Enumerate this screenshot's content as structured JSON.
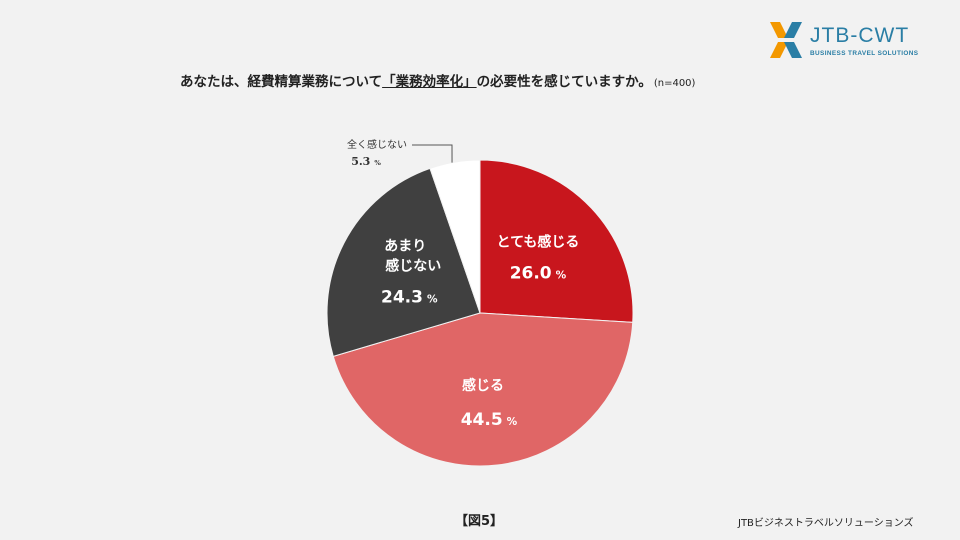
{
  "title": {
    "pre": "あなたは、経費精算業務について",
    "highlight": "「業務効率化」",
    "post": "の必要性を感じていますか。",
    "n": "(n=400)"
  },
  "logo": {
    "name": "JTB-CWT",
    "tagline": "BUSINESS TRAVEL SOLUTIONS"
  },
  "figure_label": "【図5】",
  "source": "JTBビジネストラベルソリューションズ",
  "chart_data": {
    "type": "pie",
    "unit": "%",
    "slices": [
      {
        "label": "とても感じる",
        "value": 26.0,
        "value_text": "26.0",
        "color": "#c8161d"
      },
      {
        "label": "感じる",
        "value": 44.5,
        "value_text": "44.5",
        "color": "#e06666"
      },
      {
        "label": "あまり感じない",
        "label_lines": [
          "あまり",
          "感じない"
        ],
        "value": 24.3,
        "value_text": "24.3",
        "color": "#404040"
      },
      {
        "label": "全く感じない",
        "value": 5.3,
        "value_text": "5.3",
        "color": "#ffffff"
      }
    ]
  }
}
